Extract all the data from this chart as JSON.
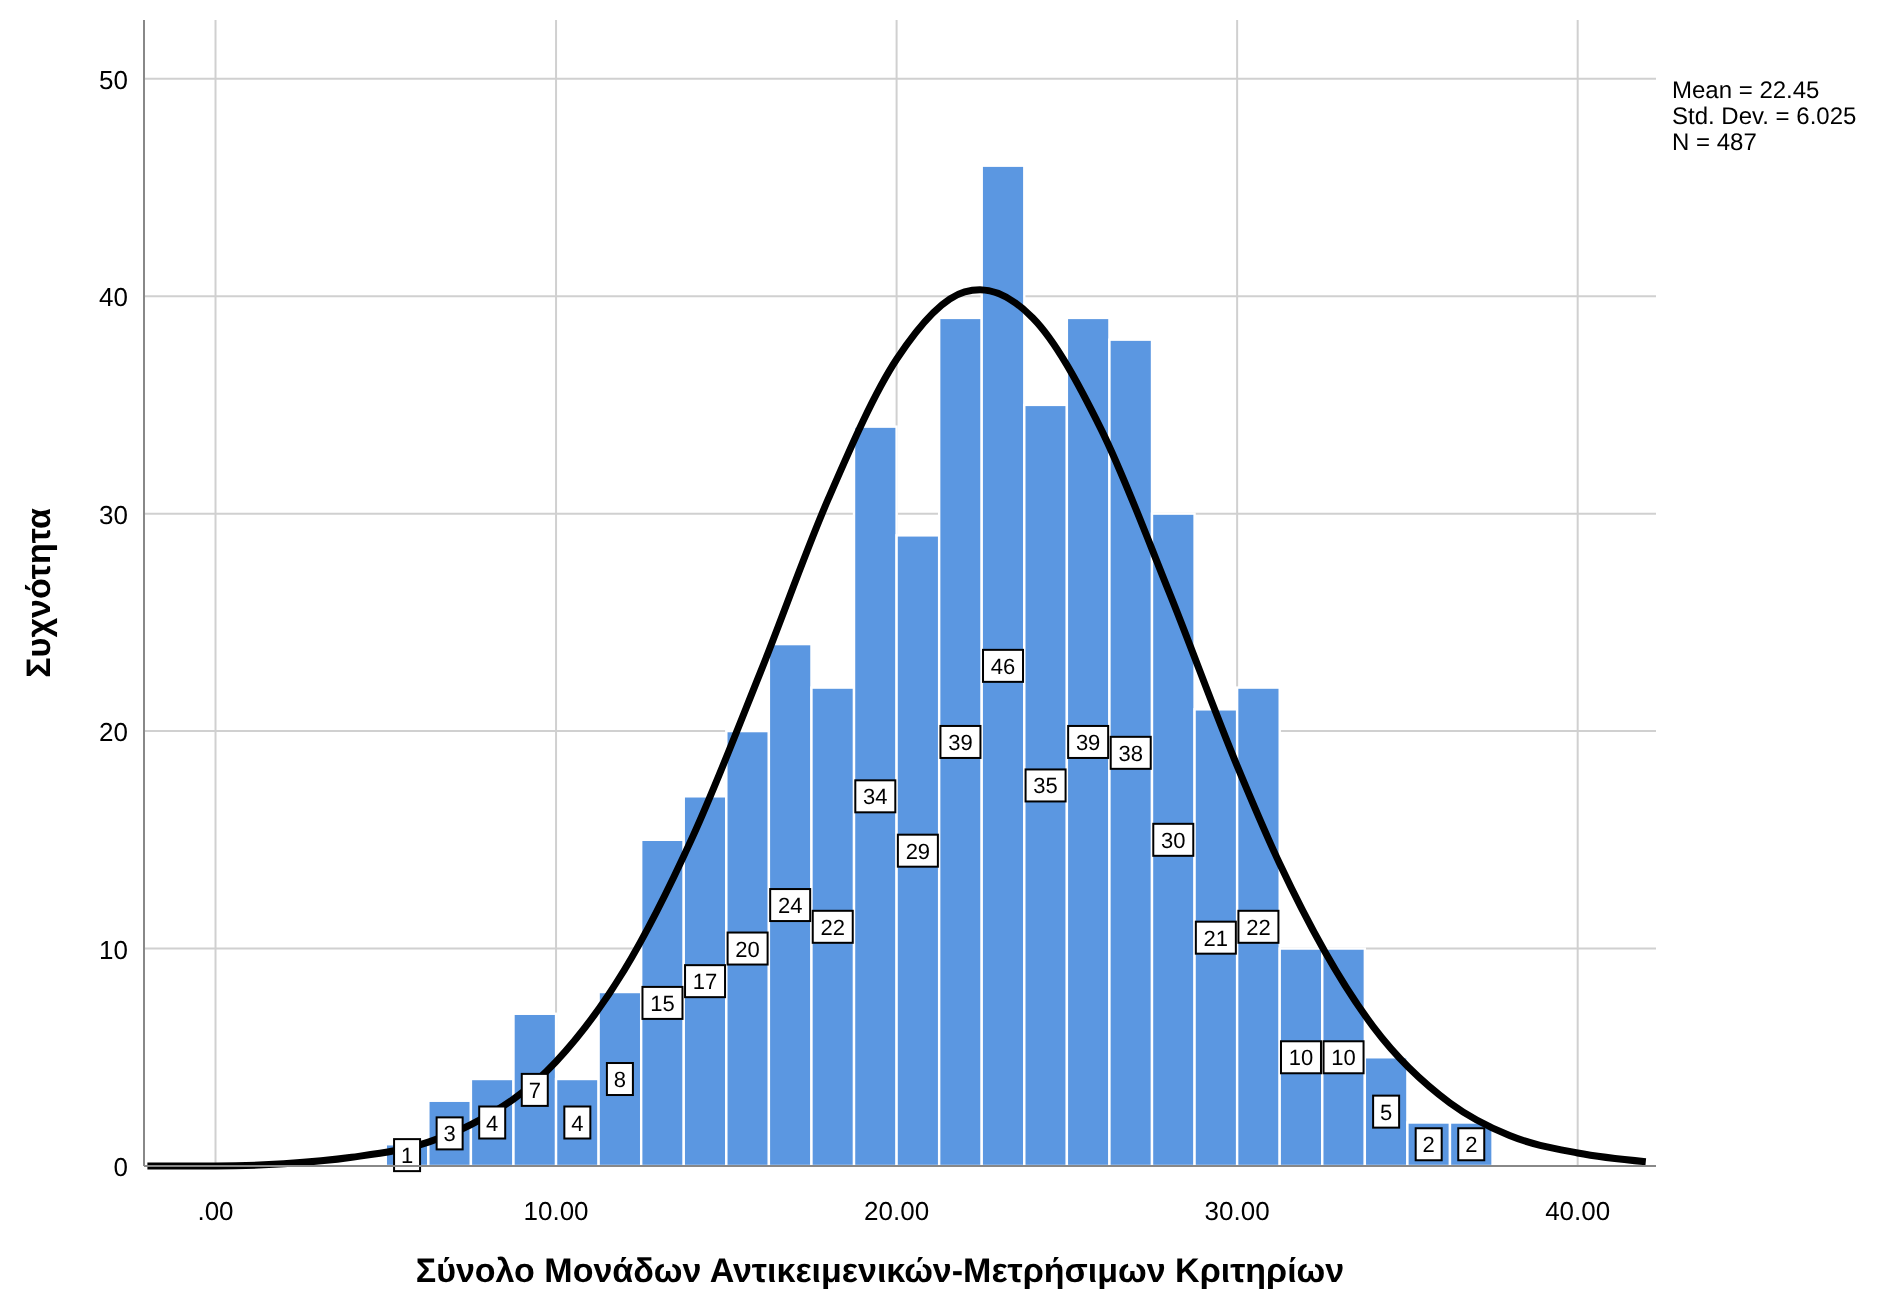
{
  "chart_data": {
    "type": "histogram",
    "xlabel": "Σύνολο Μονάδων Αντικειμενικών-Μετρήσιμων Κριτηρίων",
    "ylabel": "Συχνότητα",
    "bins": [
      5,
      6.25,
      7.5,
      8.75,
      10,
      11.25,
      12.5,
      13.75,
      15,
      16.25,
      17.5,
      18.75,
      20,
      21.25,
      22.5,
      23.75,
      25,
      26.25,
      27.5,
      28.75,
      30,
      31.25,
      32.5,
      33.75,
      35,
      36.25,
      37.5
    ],
    "series": [
      {
        "color": "#5b97e1",
        "values": [
          1,
          3,
          4,
          7,
          4,
          8,
          15,
          17,
          20,
          24,
          22,
          34,
          29,
          39,
          46,
          35,
          39,
          38,
          30,
          21,
          22,
          10,
          10,
          5,
          2,
          2
        ],
        "value_labels": [
          "1",
          "3",
          "4",
          "7",
          "4",
          "8",
          "15",
          "17",
          "20",
          "24",
          "22",
          "34",
          "29",
          "39",
          "46",
          "35",
          "39",
          "38",
          "30",
          "21",
          "22",
          "10",
          "10",
          "5",
          "2",
          "2"
        ]
      },
      {
        "type": "line",
        "color": "#000000",
        "x": [
          -2,
          0,
          2,
          4,
          6.25,
          7.5,
          10,
          12,
          14,
          16,
          18,
          20,
          22,
          22.45,
          24,
          26,
          28,
          30,
          31.25,
          34,
          36.25,
          38,
          40,
          42
        ],
        "values": [
          0,
          0,
          0.1,
          0.4,
          1.1,
          1.9,
          4.8,
          9,
          15.1,
          22.7,
          30.7,
          37.1,
          40.2,
          40.3,
          39,
          33.9,
          26.4,
          18.4,
          13.9,
          6.4,
          2.9,
          1.4,
          0.6,
          0.2
        ]
      }
    ],
    "xlim": [
      -2.1,
      42.3
    ],
    "ylim": [
      0,
      52.7
    ],
    "xticks": [
      {
        "value": 0,
        "label": ".00"
      },
      {
        "value": 10,
        "label": "10.00"
      },
      {
        "value": 20,
        "label": "20.00"
      },
      {
        "value": 30,
        "label": "30.00"
      },
      {
        "value": 40,
        "label": "40.00"
      }
    ],
    "yticks": [
      0,
      10,
      20,
      30,
      40,
      50
    ],
    "grid": true,
    "marker": "none",
    "line_style": "solid",
    "annotations": [
      "Mean = 22.45",
      "Std. Dev. = 6.025",
      "N = 487"
    ]
  }
}
